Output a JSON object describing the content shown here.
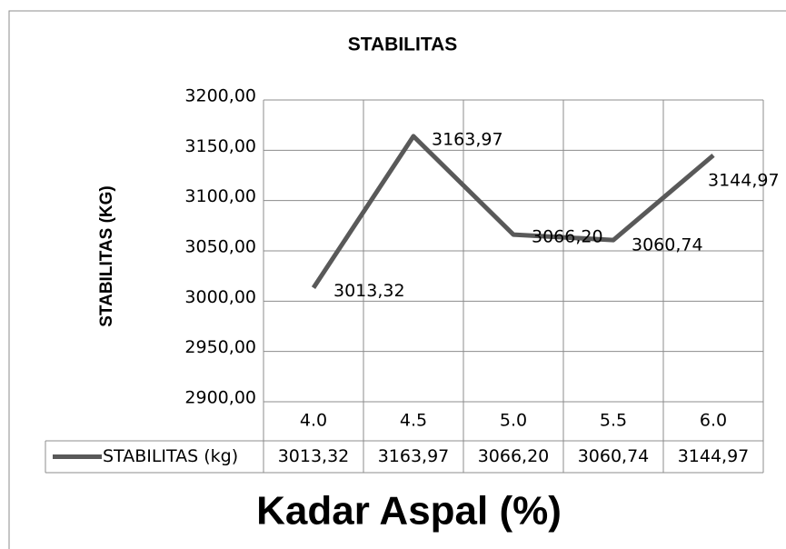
{
  "chart_data": {
    "type": "line",
    "title": "STABILITAS",
    "y_label": "STABILITAS (KG)",
    "x_label": "Kadar Aspal (%)",
    "categories": [
      "4.0",
      "4.5",
      "5.0",
      "5.5",
      "6.0"
    ],
    "series": [
      {
        "name": "STABILITAS (kg)",
        "color": "#595959",
        "values": [
          3013.32,
          3163.97,
          3066.2,
          3060.74,
          3144.97
        ],
        "value_labels": [
          "3013,32",
          "3163,97",
          "3066,20",
          "3060,74",
          "3144,97"
        ]
      }
    ],
    "ylim": [
      2900,
      3200
    ],
    "yticks": [
      {
        "value": 2900,
        "label": "2900,00"
      },
      {
        "value": 2950,
        "label": "2950,00"
      },
      {
        "value": 3000,
        "label": "3000,00"
      },
      {
        "value": 3050,
        "label": "3050,00"
      },
      {
        "value": 3100,
        "label": "3100,00"
      },
      {
        "value": 3150,
        "label": "3150,00"
      },
      {
        "value": 3200,
        "label": "3200,00"
      }
    ],
    "grid": true
  }
}
